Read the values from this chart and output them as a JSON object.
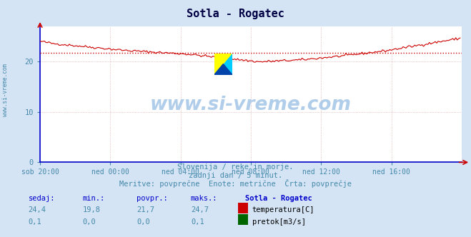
{
  "title": "Sotla - Rogatec",
  "bg_color": "#d4e4f4",
  "plot_bg_color": "#ffffff",
  "grid_color": "#e0b0b0",
  "grid_linestyle": ":",
  "temp_color": "#cc0000",
  "avg_line_color": "#cc0000",
  "flow_color": "#006600",
  "xlabel_ticks": [
    "sob 20:00",
    "ned 00:00",
    "ned 04:00",
    "ned 08:00",
    "ned 12:00",
    "ned 16:00"
  ],
  "ylabel_ticks": [
    0,
    10,
    20
  ],
  "ylim": [
    0,
    27
  ],
  "xlim_min": 0,
  "xlim_max": 288,
  "avg_temp": 21.7,
  "min_temp": 19.8,
  "max_temp": 24.7,
  "cur_temp": 24.4,
  "cur_flow": 0.1,
  "min_flow": 0.0,
  "avg_flow": 0.0,
  "max_flow": 0.1,
  "watermark": "www.si-vreme.com",
  "subtitle1": "Slovenija / reke in morje.",
  "subtitle2": "zadnji dan / 5 minut.",
  "subtitle3": "Meritve: povprečne  Enote: metrične  Črta: povprečje",
  "legend_station": "Sotla - Rogatec",
  "legend_temp": "temperatura[C]",
  "legend_flow": "pretok[m3/s]",
  "label_sedaj": "sedaj:",
  "label_min": "min.:",
  "label_povpr": "povpr.:",
  "label_maks": "maks.:",
  "axis_color": "#0000cc",
  "tick_color": "#4488aa",
  "text_color": "#4488aa",
  "table_header_color": "#0000cc",
  "table_val_color": "#4488aa",
  "title_color": "#000044",
  "left_label_color": "#4488aa",
  "n_points": 288,
  "logo_yellow": "#ffff00",
  "logo_cyan": "#00ccff",
  "logo_blue": "#0044aa"
}
